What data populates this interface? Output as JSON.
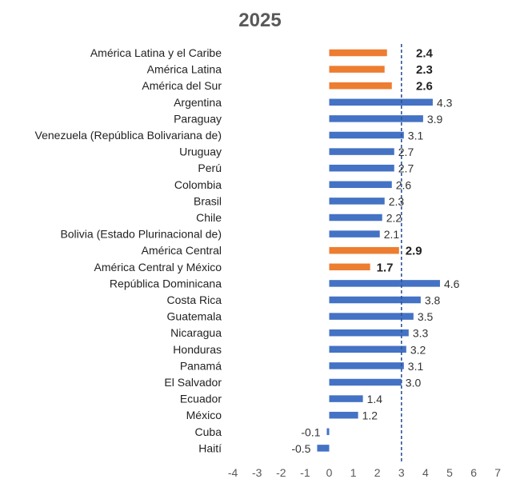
{
  "chart_data": {
    "type": "bar",
    "orientation": "horizontal",
    "title": "2025",
    "xlim": [
      -4,
      7
    ],
    "xticks": [
      "-4",
      "-3",
      "-2",
      "-1",
      "0",
      "1",
      "2",
      "3",
      "4",
      "5",
      "6",
      "7"
    ],
    "reference_line": 3,
    "grid": false,
    "legend": "none",
    "colors": {
      "country": "#4472C4",
      "aggregate": "#ED7D31",
      "reference": "#2E5597"
    },
    "bars": [
      {
        "category": "América Latina y el Caribe",
        "value": 2.4,
        "label": "2.4",
        "group": "aggregate"
      },
      {
        "category": "América Latina",
        "value": 2.3,
        "label": "2.3",
        "group": "aggregate"
      },
      {
        "category": "América del Sur",
        "value": 2.6,
        "label": "2.6",
        "group": "aggregate"
      },
      {
        "category": "Argentina",
        "value": 4.3,
        "label": "4.3",
        "group": "country"
      },
      {
        "category": "Paraguay",
        "value": 3.9,
        "label": "3.9",
        "group": "country"
      },
      {
        "category": "Venezuela (República Bolivariana de)",
        "value": 3.1,
        "label": "3.1",
        "group": "country"
      },
      {
        "category": "Uruguay",
        "value": 2.7,
        "label": "2.7",
        "group": "country"
      },
      {
        "category": "Perú",
        "value": 2.7,
        "label": "2.7",
        "group": "country"
      },
      {
        "category": "Colombia",
        "value": 2.6,
        "label": "2.6",
        "group": "country"
      },
      {
        "category": "Brasil",
        "value": 2.3,
        "label": "2.3",
        "group": "country"
      },
      {
        "category": "Chile",
        "value": 2.2,
        "label": "2.2",
        "group": "country"
      },
      {
        "category": "Bolivia (Estado Plurinacional de)",
        "value": 2.1,
        "label": "2.1",
        "group": "country"
      },
      {
        "category": "América Central",
        "value": 2.9,
        "label": "2.9",
        "group": "aggregate"
      },
      {
        "category": "América Central y México",
        "value": 1.7,
        "label": "1.7",
        "group": "aggregate"
      },
      {
        "category": "República Dominicana",
        "value": 4.6,
        "label": "4.6",
        "group": "country"
      },
      {
        "category": "Costa Rica",
        "value": 3.8,
        "label": "3.8",
        "group": "country"
      },
      {
        "category": "Guatemala",
        "value": 3.5,
        "label": "3.5",
        "group": "country"
      },
      {
        "category": "Nicaragua",
        "value": 3.3,
        "label": "3.3",
        "group": "country"
      },
      {
        "category": "Honduras",
        "value": 3.2,
        "label": "3.2",
        "group": "country"
      },
      {
        "category": "Panamá",
        "value": 3.1,
        "label": "3.1",
        "group": "country"
      },
      {
        "category": "El Salvador",
        "value": 3.0,
        "label": "3.0",
        "group": "country"
      },
      {
        "category": "Ecuador",
        "value": 1.4,
        "label": "1.4",
        "group": "country"
      },
      {
        "category": "México",
        "value": 1.2,
        "label": "1.2",
        "group": "country"
      },
      {
        "category": "Cuba",
        "value": -0.1,
        "label": "-0.1",
        "group": "country"
      },
      {
        "category": "Haití",
        "value": -0.5,
        "label": "-0.5",
        "group": "country"
      }
    ]
  }
}
